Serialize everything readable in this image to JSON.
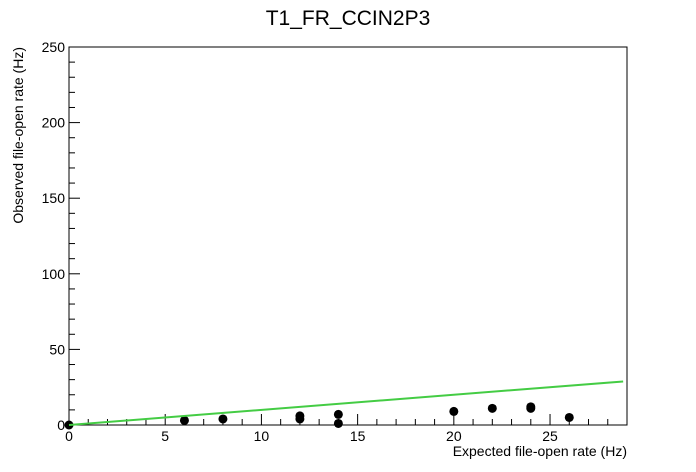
{
  "chart_data": {
    "type": "scatter",
    "title": "T1_FR_CCIN2P3",
    "xlabel": "Expected file-open rate (Hz)",
    "ylabel": "Observed file-open rate (Hz)",
    "xlim": [
      0,
      29
    ],
    "ylim": [
      0,
      250
    ],
    "x_ticks": [
      0,
      5,
      10,
      15,
      20,
      25
    ],
    "y_ticks": [
      0,
      50,
      100,
      150,
      200,
      250
    ],
    "x_tick_labels": [
      "0",
      "5",
      "10",
      "15",
      "20",
      "25"
    ],
    "y_tick_labels": [
      "0",
      "50",
      "100",
      "150",
      "200",
      "250"
    ],
    "grid": false,
    "series": [
      {
        "type": "scatter",
        "color": "#000000",
        "points": [
          {
            "x": 0,
            "y": 0
          },
          {
            "x": 6,
            "y": 3
          },
          {
            "x": 8,
            "y": 4
          },
          {
            "x": 12,
            "y": 4
          },
          {
            "x": 12,
            "y": 6
          },
          {
            "x": 14,
            "y": 1
          },
          {
            "x": 14,
            "y": 7
          },
          {
            "x": 20,
            "y": 9
          },
          {
            "x": 22,
            "y": 11
          },
          {
            "x": 24,
            "y": 11
          },
          {
            "x": 24,
            "y": 12
          },
          {
            "x": 26,
            "y": 5
          }
        ]
      },
      {
        "type": "line",
        "color": "#44cc44",
        "points": [
          {
            "x": 0,
            "y": 0
          },
          {
            "x": 28.8,
            "y": 28.8
          }
        ]
      }
    ]
  }
}
